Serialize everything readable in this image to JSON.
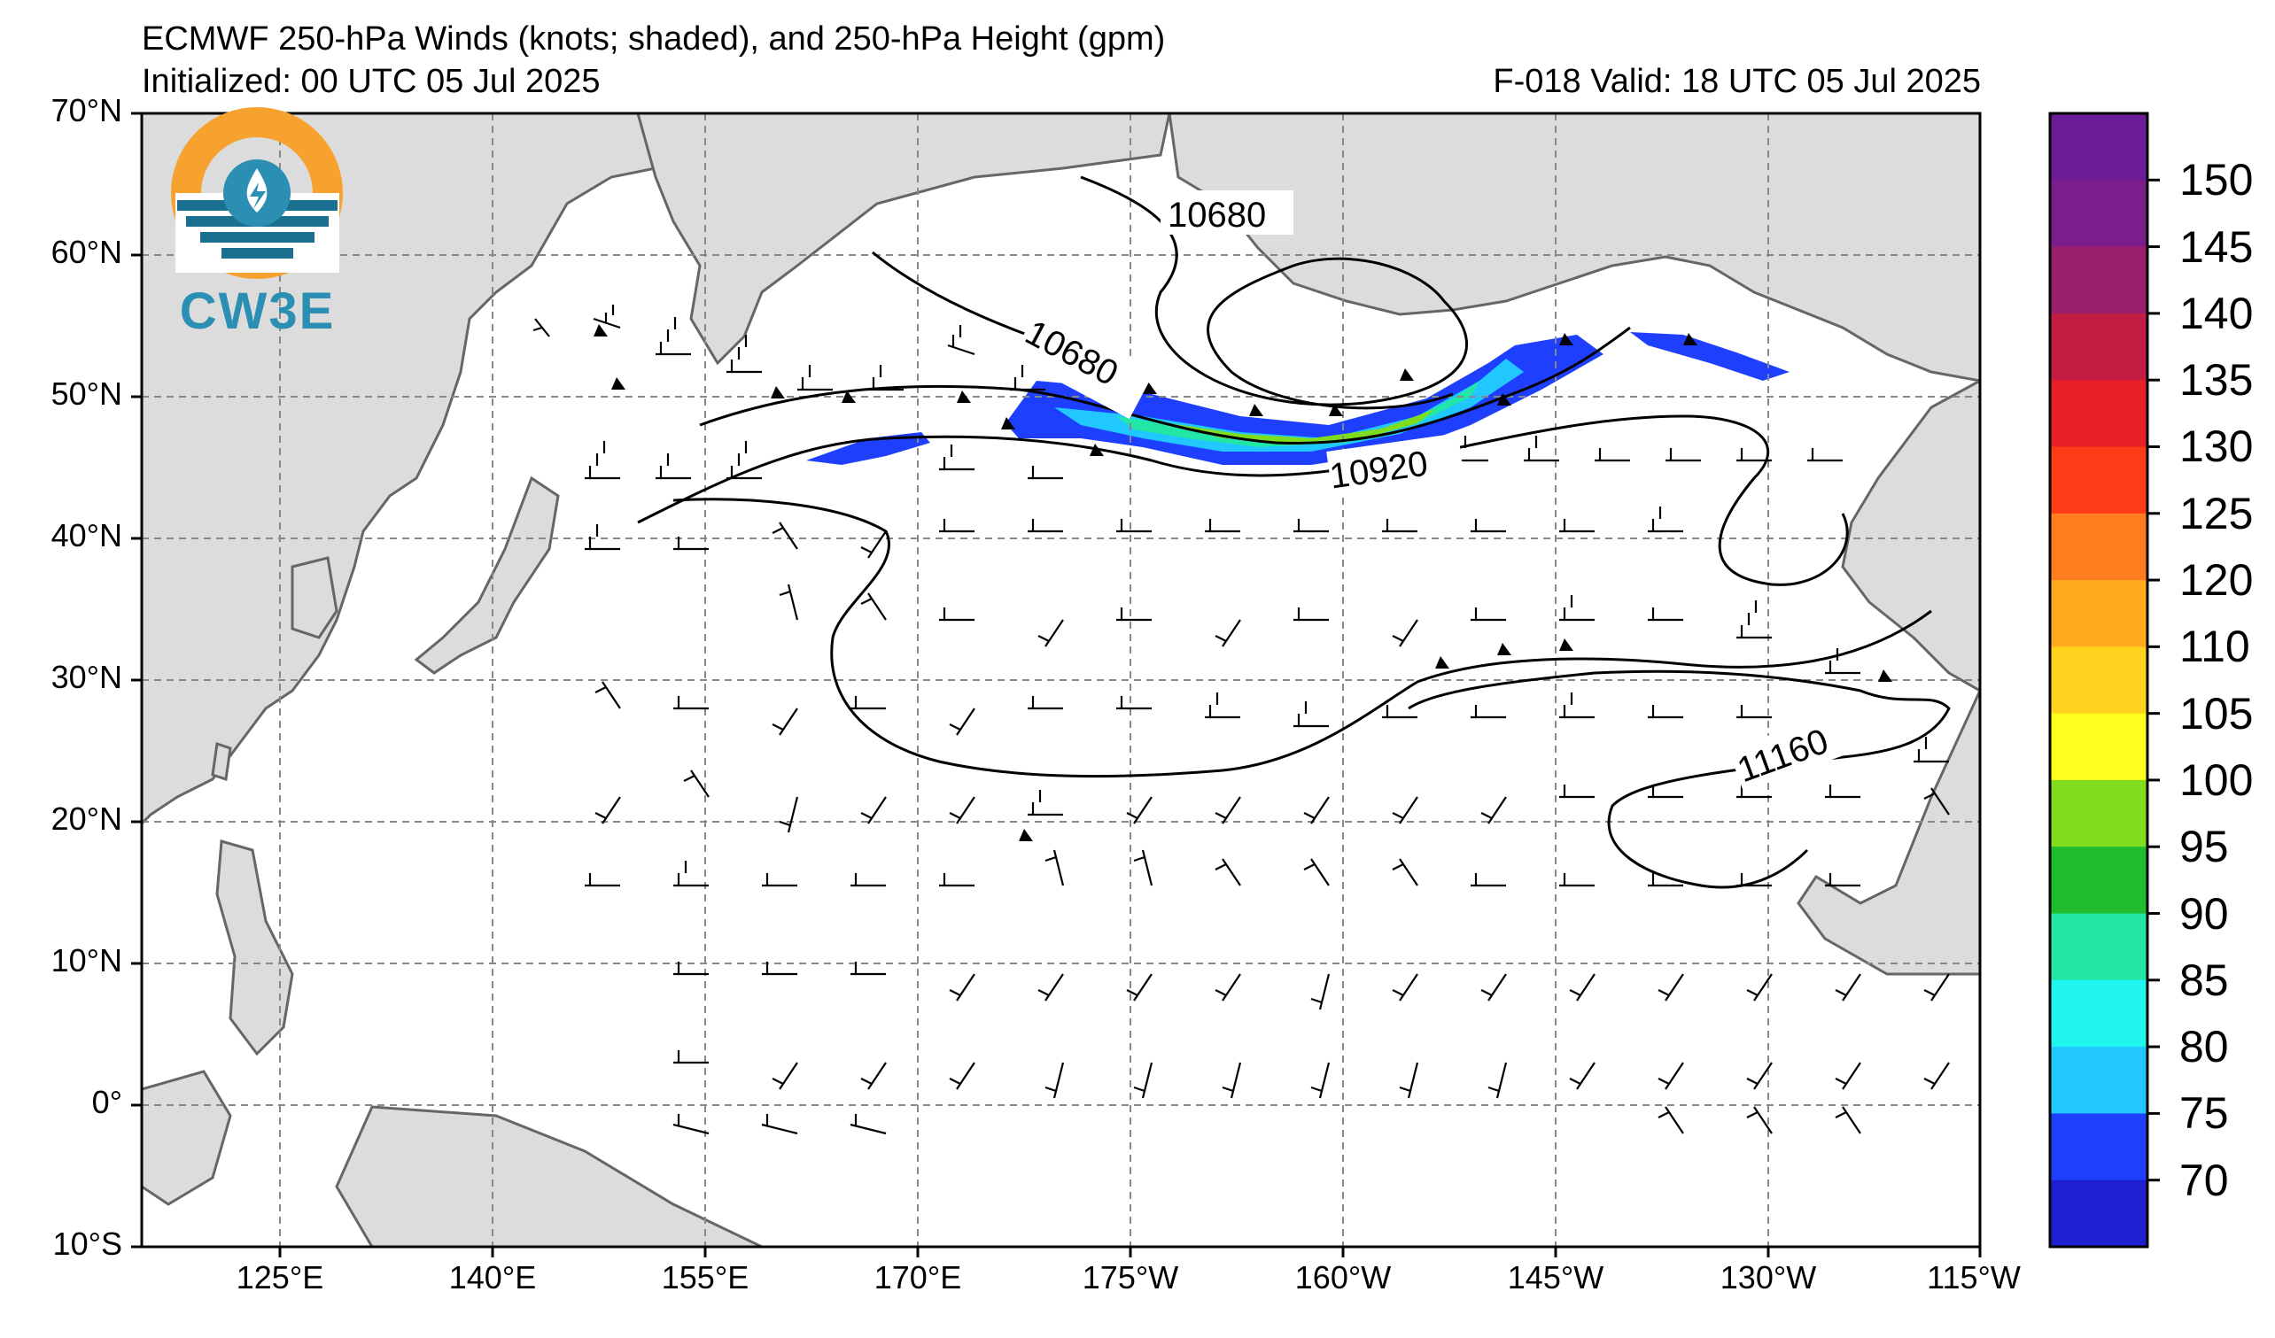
{
  "header": {
    "title": "ECMWF 250-hPa Winds (knots; shaded), and 250-hPa Height (gpm)",
    "initialized": "Initialized: 00 UTC 05 Jul 2025",
    "valid": "F-018  Valid: 18 UTC 05 Jul 2025"
  },
  "logo": {
    "text": "CW3E"
  },
  "axes": {
    "lat_labels": [
      "70°N",
      "60°N",
      "50°N",
      "40°N",
      "30°N",
      "20°N",
      "10°N",
      "0°",
      "10°S"
    ],
    "lon_labels": [
      "125°E",
      "140°E",
      "155°E",
      "170°E",
      "175°W",
      "160°W",
      "145°W",
      "130°W",
      "115°W"
    ]
  },
  "contour_labels": [
    "10680",
    "10680",
    "10920",
    "11160"
  ],
  "colorbar": {
    "labels": [
      "150",
      "145",
      "140",
      "135",
      "130",
      "125",
      "120",
      "110",
      "105",
      "100",
      "95",
      "90",
      "85",
      "80",
      "75",
      "70"
    ],
    "colors": [
      "#6a1d96",
      "#7c1d8c",
      "#9c1f6e",
      "#c21e43",
      "#e81e28",
      "#ff3a16",
      "#ff7d1e",
      "#ffaa1f",
      "#ffd21e",
      "#ffff1e",
      "#7fdc1e",
      "#1fbd2b",
      "#21e6a6",
      "#21f5f0",
      "#21c8ff",
      "#1f3fff",
      "#1f1fd2"
    ]
  }
}
